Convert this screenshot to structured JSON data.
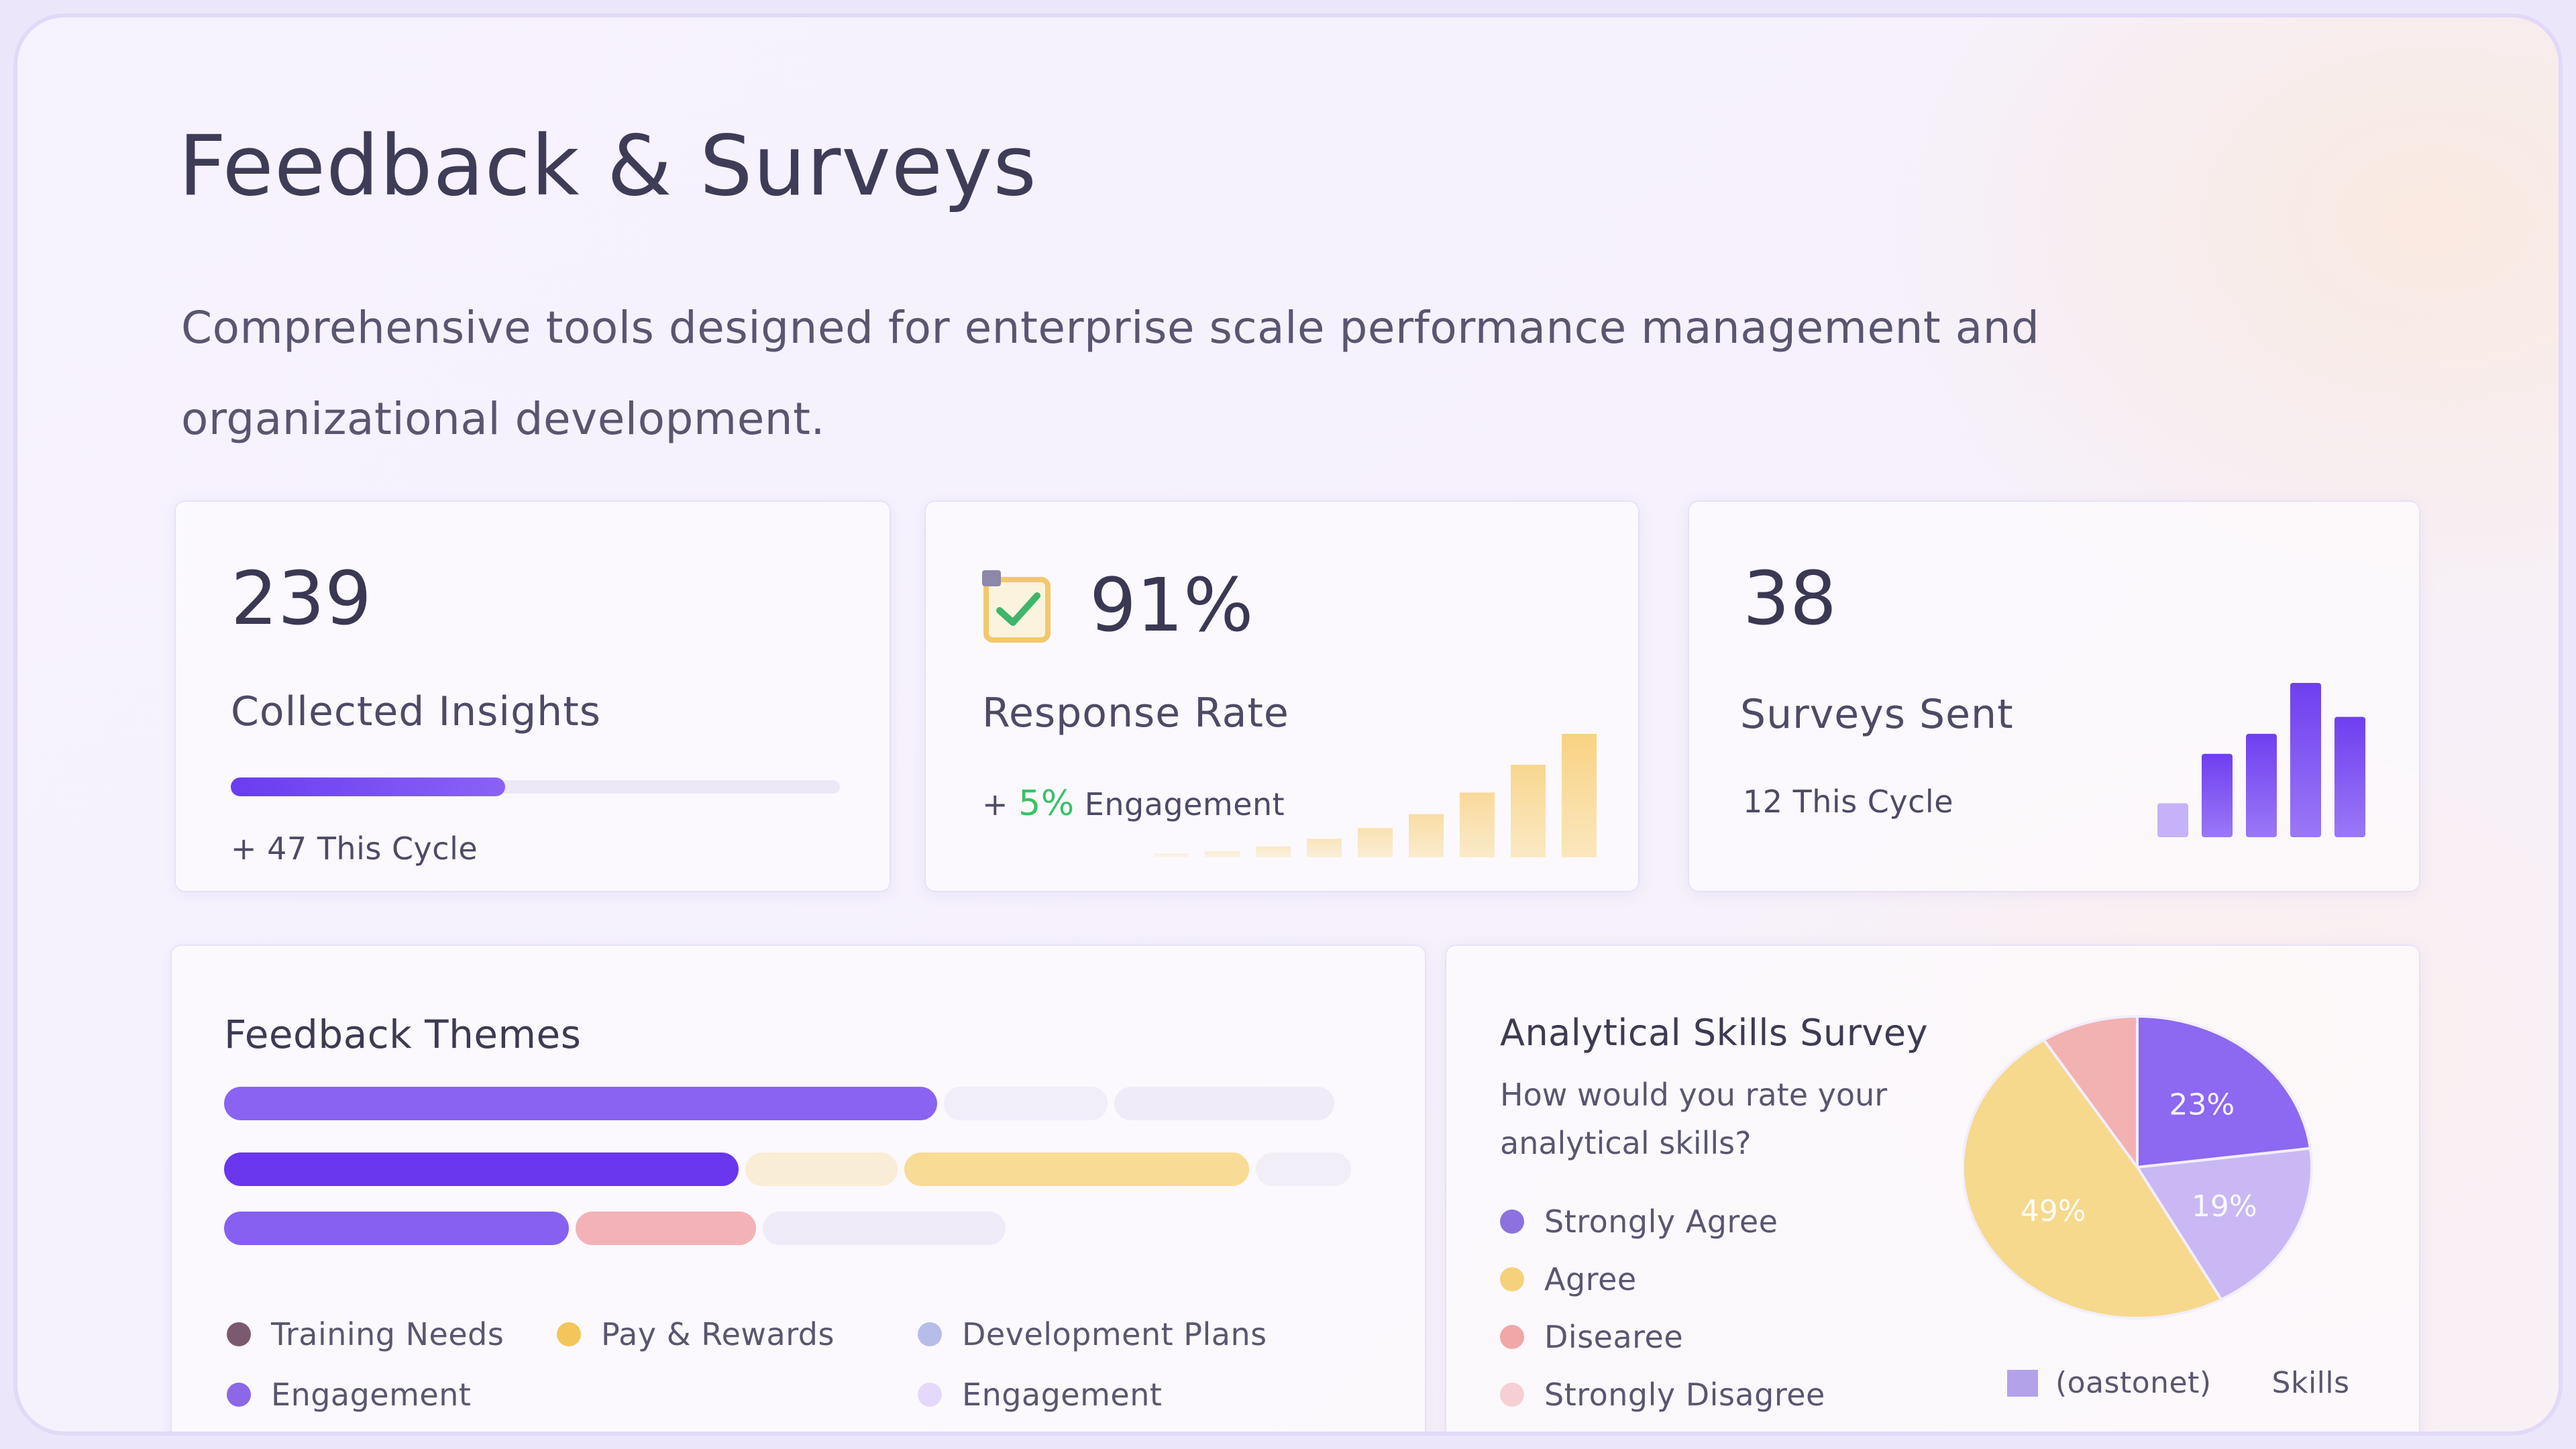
{
  "header": {
    "title": "Feedback & Surveys",
    "subtitle": "Comprehensive tools designed for enterprise scale performance management and organizational development."
  },
  "stats": {
    "insights": {
      "value": "239",
      "label": "Collected Insights",
      "sub": "+ 47 This Cycle",
      "progress": 0.45
    },
    "response": {
      "value": "91%",
      "label": "Response Rate",
      "sub_prefix": "+",
      "sub_highlight": "5%",
      "sub_suffix": "Engagement",
      "icon": "checklist-icon",
      "bars": [
        0.02,
        0.04,
        0.07,
        0.12,
        0.19,
        0.28,
        0.42,
        0.6,
        0.8,
        1.0
      ]
    },
    "surveys": {
      "value": "38",
      "label": "Surveys Sent",
      "sub": "12 This Cycle",
      "bars": [
        0.22,
        0.54,
        0.67,
        1.0,
        0.78
      ]
    }
  },
  "themes": {
    "title": "Feedback Themes",
    "rows": [
      [
        {
          "value": 0.635,
          "color": "#8a63f3"
        },
        {
          "value": 0.15,
          "color": "#f1edf9"
        },
        {
          "value": 0.2,
          "color": "#efebf8"
        }
      ],
      [
        {
          "value": 0.46,
          "color": "#6a36ee"
        },
        {
          "value": 0.14,
          "color": "#faedd6"
        },
        {
          "value": 0.31,
          "color": "#f8dc95"
        },
        {
          "value": 0.09,
          "color": "#f1eef8"
        }
      ],
      [
        {
          "value": 0.31,
          "color": "#8760f2"
        },
        {
          "value": 0.165,
          "color": "#f3b2b7"
        },
        {
          "value": 0.22,
          "color": "#efebf9"
        }
      ]
    ],
    "legend": [
      {
        "label": "Training Needs",
        "color": "#7b5a70"
      },
      {
        "label": "Pay & Rewards",
        "color": "#f2c65a"
      },
      {
        "label": "Development Plans",
        "color": "#b7bde8"
      },
      {
        "label": "Engagement",
        "color": "#8c67e8"
      },
      {
        "label": "Engagement",
        "color": "#e4d9fb"
      }
    ]
  },
  "survey": {
    "title": "Analytical Skills Survey",
    "question": "How would you rate your analytical skills?",
    "legend": [
      {
        "label": "Strongly Agree",
        "color": "#8c72e0"
      },
      {
        "label": "Agree",
        "color": "#f5d27a"
      },
      {
        "label": "Disearee",
        "color": "#f1a7a7"
      },
      {
        "label": "Strongly Disagree",
        "color": "#f6cfd3"
      }
    ],
    "chart_data": {
      "type": "pie",
      "slices": [
        {
          "label": "23%",
          "value": 23,
          "color": "#8d68f0"
        },
        {
          "label": "19%",
          "value": 19,
          "color": "#c9b8f4"
        },
        {
          "label": "49%",
          "value": 49,
          "color": "#f6d98c"
        },
        {
          "label": "",
          "value": 9,
          "color": "#f2b2b2"
        }
      ]
    },
    "pie_legend": {
      "swatch_color": "#b3a1ea",
      "label": "(oastonet)",
      "extra": "Skills"
    }
  }
}
